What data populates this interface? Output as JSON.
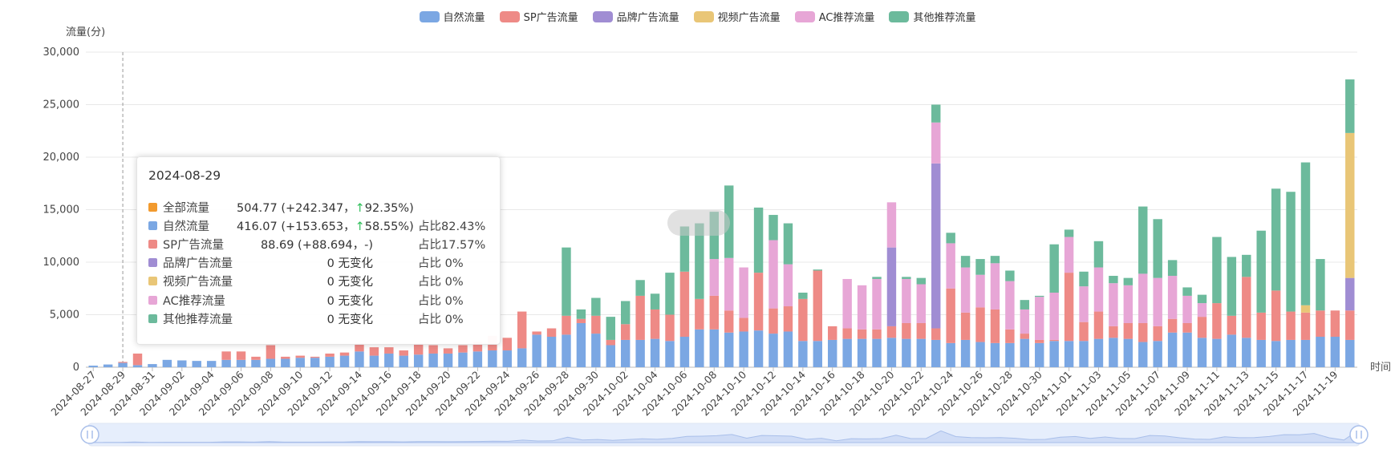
{
  "legend": [
    {
      "name": "自然流量",
      "color": "#7ba7e3"
    },
    {
      "name": "SP广告流量",
      "color": "#ee8a86"
    },
    {
      "name": "品牌广告流量",
      "color": "#a08dd3"
    },
    {
      "name": "视频广告流量",
      "color": "#e9c677"
    },
    {
      "name": "AC推荐流量",
      "color": "#e7a6d6"
    },
    {
      "name": "其他推荐流量",
      "color": "#6cba9c"
    }
  ],
  "tooltip": {
    "date": "2024-08-29",
    "rows": [
      {
        "name": "全部流量",
        "color": "#f29a2e",
        "value": "504.77 (+242.347，",
        "arrow": "↑",
        "pct": "92.35%)",
        "share": ""
      },
      {
        "name": "自然流量",
        "color": "#7ba7e3",
        "value": "416.07 (+153.653，",
        "arrow": "↑",
        "pct": "58.55%)",
        "share": "占比82.43%"
      },
      {
        "name": "SP广告流量",
        "color": "#ee8a86",
        "value": "88.69 (+88.694，-)",
        "arrow": "",
        "pct": "",
        "share": "占比17.57%"
      },
      {
        "name": "品牌广告流量",
        "color": "#a08dd3",
        "value": "0 无变化",
        "arrow": "",
        "pct": "",
        "share": "占比 0%"
      },
      {
        "name": "视频广告流量",
        "color": "#e9c677",
        "value": "0 无变化",
        "arrow": "",
        "pct": "",
        "share": "占比 0%"
      },
      {
        "name": "AC推荐流量",
        "color": "#e7a6d6",
        "value": "0 无变化",
        "arrow": "",
        "pct": "",
        "share": "占比 0%"
      },
      {
        "name": "其他推荐流量",
        "color": "#6cba9c",
        "value": "0 无变化",
        "arrow": "",
        "pct": "",
        "share": "占比 0%"
      }
    ]
  },
  "chart_data": {
    "type": "bar",
    "stacked": true,
    "ylabel": "流量(分)",
    "xlabel": "时间",
    "ylim": [
      0,
      30000
    ],
    "yticks": [
      "0",
      "5,000",
      "10,000",
      "15,000",
      "20,000",
      "25,000",
      "30,000"
    ],
    "grid": true,
    "legend_position": "top",
    "categories": [
      "2024-08-27",
      "2024-08-28",
      "2024-08-29",
      "2024-08-30",
      "2024-08-31",
      "2024-09-01",
      "2024-09-02",
      "2024-09-03",
      "2024-09-04",
      "2024-09-05",
      "2024-09-06",
      "2024-09-07",
      "2024-09-08",
      "2024-09-09",
      "2024-09-10",
      "2024-09-11",
      "2024-09-12",
      "2024-09-13",
      "2024-09-14",
      "2024-09-15",
      "2024-09-16",
      "2024-09-17",
      "2024-09-18",
      "2024-09-19",
      "2024-09-20",
      "2024-09-21",
      "2024-09-22",
      "2024-09-23",
      "2024-09-24",
      "2024-09-25",
      "2024-09-26",
      "2024-09-27",
      "2024-09-28",
      "2024-09-29",
      "2024-09-30",
      "2024-10-01",
      "2024-10-02",
      "2024-10-03",
      "2024-10-04",
      "2024-10-05",
      "2024-10-06",
      "2024-10-07",
      "2024-10-08",
      "2024-10-09",
      "2024-10-10",
      "2024-10-11",
      "2024-10-12",
      "2024-10-13",
      "2024-10-14",
      "2024-10-15",
      "2024-10-16",
      "2024-10-17",
      "2024-10-18",
      "2024-10-19",
      "2024-10-20",
      "2024-10-21",
      "2024-10-22",
      "2024-10-23",
      "2024-10-24",
      "2024-10-25",
      "2024-10-26",
      "2024-10-27",
      "2024-10-28",
      "2024-10-29",
      "2024-10-30",
      "2024-10-31",
      "2024-11-01",
      "2024-11-02",
      "2024-11-03",
      "2024-11-04",
      "2024-11-05",
      "2024-11-06",
      "2024-11-07",
      "2024-11-08",
      "2024-11-09",
      "2024-11-10",
      "2024-11-11",
      "2024-11-12",
      "2024-11-13",
      "2024-11-14",
      "2024-11-15",
      "2024-11-16",
      "2024-11-17",
      "2024-11-18",
      "2024-11-19",
      "2024-11-20"
    ],
    "xtick_labels": [
      "2024-08-27",
      "2024-08-29",
      "2024-08-31",
      "2024-09-02",
      "2024-09-04",
      "2024-09-06",
      "2024-09-08",
      "2024-09-10",
      "2024-09-12",
      "2024-09-14",
      "2024-09-16",
      "2024-09-18",
      "2024-09-20",
      "2024-09-22",
      "2024-09-24",
      "2024-09-26",
      "2024-09-28",
      "2024-09-30",
      "2024-10-02",
      "2024-10-04",
      "2024-10-06",
      "2024-10-08",
      "2024-10-10",
      "2024-10-12",
      "2024-10-14",
      "2024-10-16",
      "2024-10-18",
      "2024-10-20",
      "2024-10-22",
      "2024-10-24",
      "2024-10-26",
      "2024-10-28",
      "2024-10-30",
      "2024-11-01",
      "2024-11-03",
      "2024-11-05",
      "2024-11-07",
      "2024-11-09",
      "2024-11-11",
      "2024-11-13",
      "2024-11-15",
      "2024-11-17",
      "2024-11-19"
    ],
    "highlight_category": "2024-08-29",
    "series": [
      {
        "name": "自然流量",
        "color": "#7ba7e3",
        "values": [
          150,
          260,
          416,
          200,
          300,
          700,
          650,
          600,
          600,
          700,
          700,
          700,
          800,
          800,
          900,
          900,
          1000,
          1100,
          1500,
          1100,
          1300,
          1100,
          1200,
          1300,
          1300,
          1400,
          1500,
          1600,
          1600,
          1800,
          3100,
          2900,
          3100,
          4200,
          3200,
          2100,
          2600,
          2600,
          2700,
          2500,
          2900,
          3600,
          3600,
          3300,
          3400,
          3500,
          3200,
          3400,
          2500,
          2500,
          2600,
          2700,
          2700,
          2700,
          2800,
          2700,
          2700,
          2600,
          2300,
          2600,
          2400,
          2300,
          2300,
          2700,
          2300,
          2500,
          2500,
          2500,
          2700,
          2800,
          2700,
          2400,
          2500,
          3300,
          3300,
          2800,
          2700,
          3100,
          2800,
          2600,
          2500,
          2600,
          2600,
          2900,
          2900,
          2600
        ]
      },
      {
        "name": "SP广告流量",
        "color": "#ee8a86",
        "values": [
          0,
          0,
          89,
          1100,
          0,
          0,
          0,
          0,
          0,
          800,
          800,
          300,
          1300,
          200,
          200,
          100,
          300,
          300,
          800,
          800,
          600,
          500,
          1100,
          800,
          500,
          700,
          900,
          1400,
          1200,
          3500,
          300,
          800,
          1800,
          400,
          1700,
          500,
          1500,
          4200,
          2800,
          2500,
          6200,
          2900,
          3200,
          2100,
          1300,
          5500,
          2400,
          2400,
          4000,
          6700,
          1300,
          1000,
          900,
          900,
          1100,
          1500,
          1500,
          1100,
          5200,
          2600,
          3300,
          3200,
          1300,
          500,
          300,
          100,
          6500,
          1800,
          2600,
          1100,
          1500,
          1800,
          1400,
          1300,
          900,
          2000,
          3400,
          1800,
          5800,
          2600,
          4800,
          2700,
          2600,
          2500,
          2500,
          2800
        ]
      },
      {
        "name": "品牌广告流量",
        "color": "#a08dd3",
        "values": [
          0,
          0,
          0,
          0,
          0,
          0,
          0,
          0,
          0,
          0,
          0,
          0,
          0,
          0,
          0,
          0,
          0,
          0,
          0,
          0,
          0,
          0,
          0,
          0,
          0,
          0,
          0,
          0,
          0,
          0,
          0,
          0,
          0,
          0,
          0,
          0,
          0,
          0,
          0,
          0,
          0,
          0,
          0,
          0,
          0,
          0,
          0,
          0,
          0,
          0,
          0,
          0,
          0,
          0,
          7500,
          0,
          0,
          15700,
          0,
          0,
          0,
          0,
          0,
          0,
          0,
          0,
          0,
          0,
          0,
          0,
          0,
          0,
          0,
          0,
          0,
          0,
          0,
          0,
          0,
          0,
          0,
          0,
          0,
          0,
          0,
          3100
        ]
      },
      {
        "name": "视频广告流量",
        "color": "#e9c677",
        "values": [
          0,
          0,
          0,
          0,
          0,
          0,
          0,
          0,
          0,
          0,
          0,
          0,
          0,
          0,
          0,
          0,
          0,
          0,
          0,
          0,
          0,
          0,
          0,
          0,
          0,
          0,
          0,
          0,
          0,
          0,
          0,
          0,
          0,
          0,
          0,
          0,
          0,
          0,
          0,
          0,
          0,
          0,
          0,
          0,
          0,
          0,
          0,
          0,
          0,
          0,
          0,
          0,
          0,
          0,
          0,
          0,
          0,
          0,
          0,
          0,
          0,
          0,
          0,
          0,
          0,
          0,
          0,
          0,
          0,
          0,
          0,
          0,
          0,
          0,
          0,
          0,
          0,
          0,
          0,
          0,
          0,
          0,
          700,
          0,
          0,
          13800
        ]
      },
      {
        "name": "AC推荐流量",
        "color": "#e7a6d6",
        "values": [
          0,
          0,
          0,
          0,
          0,
          0,
          0,
          0,
          0,
          0,
          0,
          0,
          0,
          0,
          0,
          0,
          0,
          0,
          0,
          0,
          0,
          0,
          0,
          0,
          0,
          0,
          0,
          0,
          0,
          0,
          0,
          0,
          0,
          0,
          0,
          0,
          0,
          0,
          0,
          0,
          0,
          0,
          3500,
          5000,
          4800,
          0,
          6500,
          4000,
          0,
          0,
          0,
          4700,
          4200,
          4800,
          4300,
          4200,
          3700,
          3900,
          4300,
          4300,
          3100,
          4400,
          4600,
          2300,
          4100,
          4500,
          3400,
          3400,
          4200,
          4100,
          3600,
          4700,
          4600,
          4100,
          2600,
          1300,
          0,
          0,
          0,
          0,
          0,
          0,
          0,
          0,
          0,
          0
        ]
      },
      {
        "name": "其他推荐流量",
        "color": "#6cba9c",
        "values": [
          0,
          0,
          0,
          0,
          0,
          0,
          0,
          0,
          0,
          0,
          0,
          0,
          0,
          0,
          0,
          0,
          0,
          0,
          0,
          0,
          0,
          0,
          0,
          0,
          0,
          0,
          0,
          0,
          0,
          0,
          0,
          0,
          6500,
          900,
          1700,
          2200,
          2200,
          1500,
          1500,
          4000,
          4300,
          7200,
          4500,
          6900,
          0,
          6200,
          2400,
          3900,
          600,
          100,
          0,
          0,
          0,
          200,
          0,
          200,
          600,
          1700,
          1000,
          1100,
          1500,
          700,
          1000,
          900,
          100,
          4600,
          700,
          1400,
          2500,
          700,
          700,
          6400,
          5600,
          1500,
          800,
          800,
          6300,
          5600,
          2100,
          7800,
          9700,
          11400,
          13600,
          4900,
          0,
          5100
        ]
      }
    ]
  }
}
